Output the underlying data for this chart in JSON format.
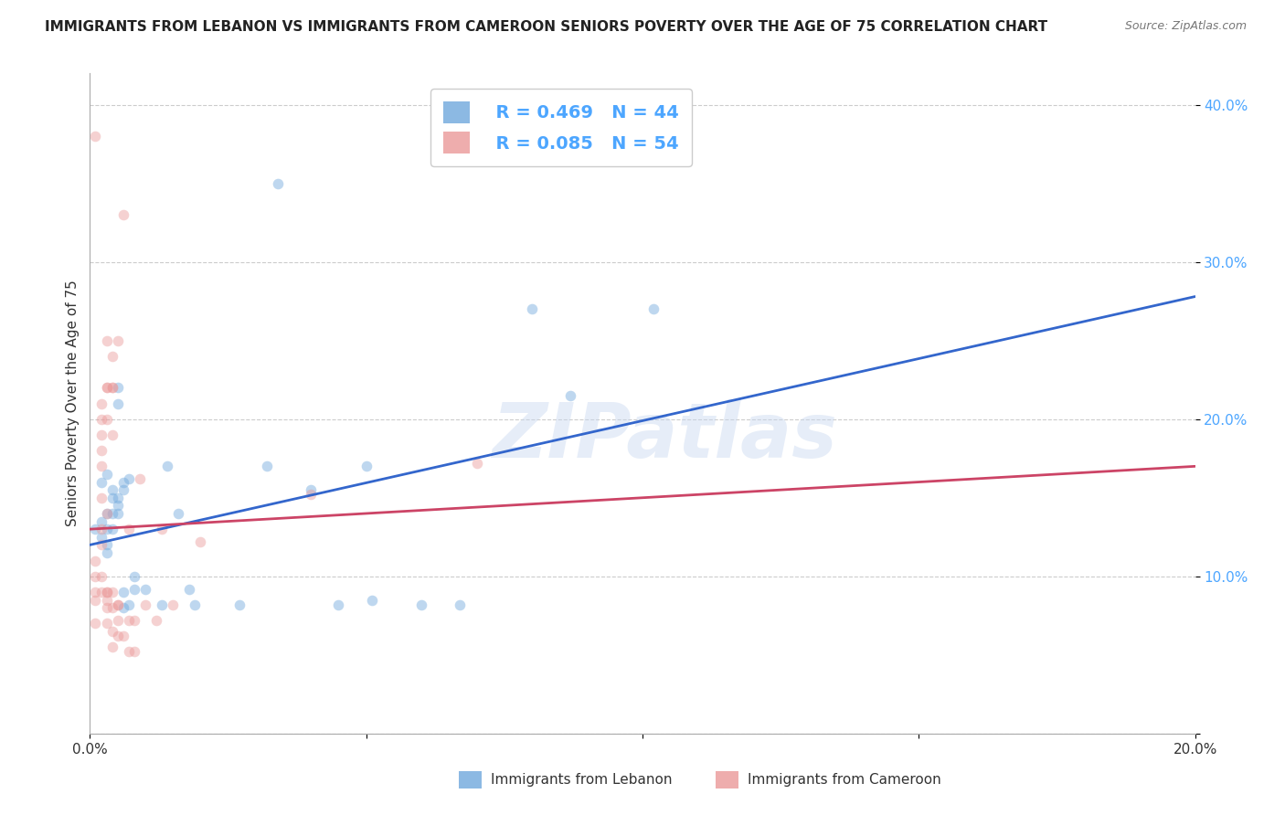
{
  "title": "IMMIGRANTS FROM LEBANON VS IMMIGRANTS FROM CAMEROON SENIORS POVERTY OVER THE AGE OF 75 CORRELATION CHART",
  "source": "Source: ZipAtlas.com",
  "ylabel": "Seniors Poverty Over the Age of 75",
  "xlabel_lebanon": "Immigrants from Lebanon",
  "xlabel_cameroon": "Immigrants from Cameroon",
  "xlim": [
    0,
    0.2
  ],
  "ylim": [
    0.0,
    0.42
  ],
  "yticks": [
    0.0,
    0.1,
    0.2,
    0.3,
    0.4
  ],
  "ytick_labels": [
    "",
    "10.0%",
    "20.0%",
    "30.0%",
    "40.0%"
  ],
  "xticks": [
    0.0,
    0.05,
    0.1,
    0.15,
    0.2
  ],
  "xtick_labels": [
    "0.0%",
    "",
    "",
    "",
    "20.0%"
  ],
  "legend_r_lebanon": "R = 0.469",
  "legend_n_lebanon": "N = 44",
  "legend_r_cameroon": "R = 0.085",
  "legend_n_cameroon": "N = 54",
  "color_lebanon": "#6fa8dc",
  "color_cameroon": "#ea9999",
  "watermark": "ZIPatlas",
  "lebanon_scatter": [
    [
      0.001,
      0.13
    ],
    [
      0.002,
      0.16
    ],
    [
      0.002,
      0.125
    ],
    [
      0.002,
      0.135
    ],
    [
      0.003,
      0.14
    ],
    [
      0.003,
      0.12
    ],
    [
      0.003,
      0.115
    ],
    [
      0.003,
      0.165
    ],
    [
      0.003,
      0.13
    ],
    [
      0.004,
      0.15
    ],
    [
      0.004,
      0.155
    ],
    [
      0.004,
      0.14
    ],
    [
      0.004,
      0.13
    ],
    [
      0.005,
      0.22
    ],
    [
      0.005,
      0.15
    ],
    [
      0.005,
      0.145
    ],
    [
      0.005,
      0.21
    ],
    [
      0.005,
      0.14
    ],
    [
      0.006,
      0.16
    ],
    [
      0.006,
      0.155
    ],
    [
      0.006,
      0.09
    ],
    [
      0.006,
      0.08
    ],
    [
      0.007,
      0.082
    ],
    [
      0.007,
      0.162
    ],
    [
      0.008,
      0.092
    ],
    [
      0.008,
      0.1
    ],
    [
      0.01,
      0.092
    ],
    [
      0.013,
      0.082
    ],
    [
      0.014,
      0.17
    ],
    [
      0.016,
      0.14
    ],
    [
      0.018,
      0.092
    ],
    [
      0.019,
      0.082
    ],
    [
      0.027,
      0.082
    ],
    [
      0.032,
      0.17
    ],
    [
      0.034,
      0.35
    ],
    [
      0.04,
      0.155
    ],
    [
      0.045,
      0.082
    ],
    [
      0.05,
      0.17
    ],
    [
      0.051,
      0.085
    ],
    [
      0.06,
      0.082
    ],
    [
      0.067,
      0.082
    ],
    [
      0.08,
      0.27
    ],
    [
      0.087,
      0.215
    ],
    [
      0.102,
      0.27
    ]
  ],
  "cameroon_scatter": [
    [
      0.001,
      0.09
    ],
    [
      0.001,
      0.07
    ],
    [
      0.001,
      0.1
    ],
    [
      0.001,
      0.38
    ],
    [
      0.001,
      0.11
    ],
    [
      0.001,
      0.085
    ],
    [
      0.002,
      0.13
    ],
    [
      0.002,
      0.2
    ],
    [
      0.002,
      0.17
    ],
    [
      0.002,
      0.19
    ],
    [
      0.002,
      0.09
    ],
    [
      0.002,
      0.1
    ],
    [
      0.002,
      0.12
    ],
    [
      0.002,
      0.21
    ],
    [
      0.002,
      0.18
    ],
    [
      0.002,
      0.15
    ],
    [
      0.003,
      0.085
    ],
    [
      0.003,
      0.09
    ],
    [
      0.003,
      0.08
    ],
    [
      0.003,
      0.2
    ],
    [
      0.003,
      0.22
    ],
    [
      0.003,
      0.09
    ],
    [
      0.003,
      0.07
    ],
    [
      0.003,
      0.25
    ],
    [
      0.003,
      0.22
    ],
    [
      0.003,
      0.14
    ],
    [
      0.004,
      0.09
    ],
    [
      0.004,
      0.065
    ],
    [
      0.004,
      0.22
    ],
    [
      0.004,
      0.19
    ],
    [
      0.004,
      0.08
    ],
    [
      0.004,
      0.055
    ],
    [
      0.004,
      0.24
    ],
    [
      0.004,
      0.22
    ],
    [
      0.005,
      0.082
    ],
    [
      0.005,
      0.062
    ],
    [
      0.005,
      0.072
    ],
    [
      0.005,
      0.25
    ],
    [
      0.005,
      0.082
    ],
    [
      0.006,
      0.33
    ],
    [
      0.006,
      0.062
    ],
    [
      0.007,
      0.072
    ],
    [
      0.007,
      0.13
    ],
    [
      0.007,
      0.052
    ],
    [
      0.008,
      0.052
    ],
    [
      0.008,
      0.072
    ],
    [
      0.009,
      0.162
    ],
    [
      0.01,
      0.082
    ],
    [
      0.012,
      0.072
    ],
    [
      0.013,
      0.13
    ],
    [
      0.015,
      0.082
    ],
    [
      0.02,
      0.122
    ],
    [
      0.04,
      0.152
    ],
    [
      0.07,
      0.172
    ]
  ],
  "lebanon_line": [
    [
      0.0,
      0.12
    ],
    [
      0.2,
      0.278
    ]
  ],
  "cameroon_line": [
    [
      0.0,
      0.13
    ],
    [
      0.2,
      0.17
    ]
  ],
  "background_color": "#ffffff",
  "grid_color": "#cccccc",
  "title_fontsize": 11,
  "axis_fontsize": 11,
  "tick_fontsize": 11,
  "scatter_size": 70,
  "scatter_alpha": 0.45,
  "line_width": 2.0
}
